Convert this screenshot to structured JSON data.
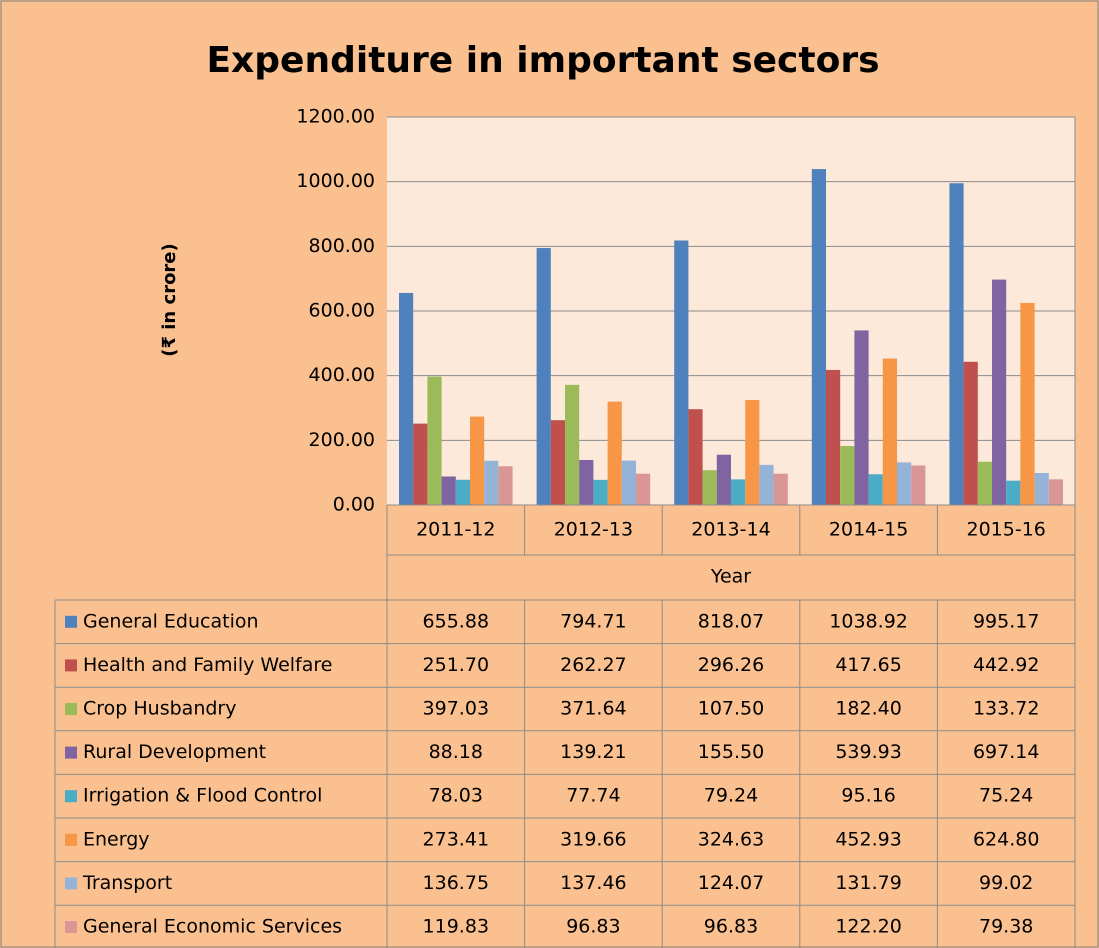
{
  "chart_data": {
    "type": "bar",
    "title": "Expenditure in important sectors",
    "ylabel": "(₹ in crore)",
    "xlabel": "Year",
    "categories": [
      "2011-12",
      "2012-13",
      "2013-14",
      "2014-15",
      "2015-16"
    ],
    "series": [
      {
        "name": "General Education",
        "color": "#4f81bd",
        "values": [
          655.88,
          794.71,
          818.07,
          1038.92,
          995.17
        ],
        "value_labels": [
          "655.88",
          "794.71",
          "818.07",
          "1038.92",
          "995.17"
        ]
      },
      {
        "name": "Health and Family Welfare",
        "color": "#c0504d",
        "values": [
          251.7,
          262.27,
          296.26,
          417.65,
          442.92
        ],
        "value_labels": [
          "251.70",
          "262.27",
          "296.26",
          "417.65",
          "442.92"
        ]
      },
      {
        "name": "Crop Husbandry",
        "color": "#9bbb59",
        "values": [
          397.03,
          371.64,
          107.5,
          182.4,
          133.72
        ],
        "value_labels": [
          "397.03",
          "371.64",
          "107.50",
          "182.40",
          "133.72"
        ]
      },
      {
        "name": "Rural Development",
        "color": "#8064a2",
        "values": [
          88.18,
          139.21,
          155.5,
          539.93,
          697.14
        ],
        "value_labels": [
          "88.18",
          "139.21",
          "155.50",
          "539.93",
          "697.14"
        ]
      },
      {
        "name": "Irrigation & Flood Control",
        "color": "#4bacc6",
        "values": [
          78.03,
          77.74,
          79.24,
          95.16,
          75.24
        ],
        "value_labels": [
          "78.03",
          "77.74",
          "79.24",
          "95.16",
          "75.24"
        ]
      },
      {
        "name": "Energy",
        "color": "#f79646",
        "values": [
          273.41,
          319.66,
          324.63,
          452.93,
          624.8
        ],
        "value_labels": [
          "273.41",
          "319.66",
          "324.63",
          "452.93",
          "624.80"
        ]
      },
      {
        "name": "Transport",
        "color": "#95b3d7",
        "values": [
          136.75,
          137.46,
          124.07,
          131.79,
          99.02
        ],
        "value_labels": [
          "136.75",
          "137.46",
          "124.07",
          "131.79",
          "99.02"
        ]
      },
      {
        "name": "General Economic Services",
        "color": "#d99694",
        "values": [
          119.83,
          96.83,
          96.83,
          122.2,
          79.38
        ],
        "value_labels": [
          "119.83",
          "96.83",
          "96.83",
          "122.20",
          "79.38"
        ]
      }
    ],
    "ylim": [
      0,
      1200
    ],
    "yticks": [
      {
        "value": 0,
        "label": "0.00"
      },
      {
        "value": 200,
        "label": "200.00"
      },
      {
        "value": 400,
        "label": "400.00"
      },
      {
        "value": 600,
        "label": "600.00"
      },
      {
        "value": 800,
        "label": "800.00"
      },
      {
        "value": 1000,
        "label": "1000.00"
      },
      {
        "value": 1200,
        "label": "1200.00"
      }
    ],
    "grid": true
  }
}
